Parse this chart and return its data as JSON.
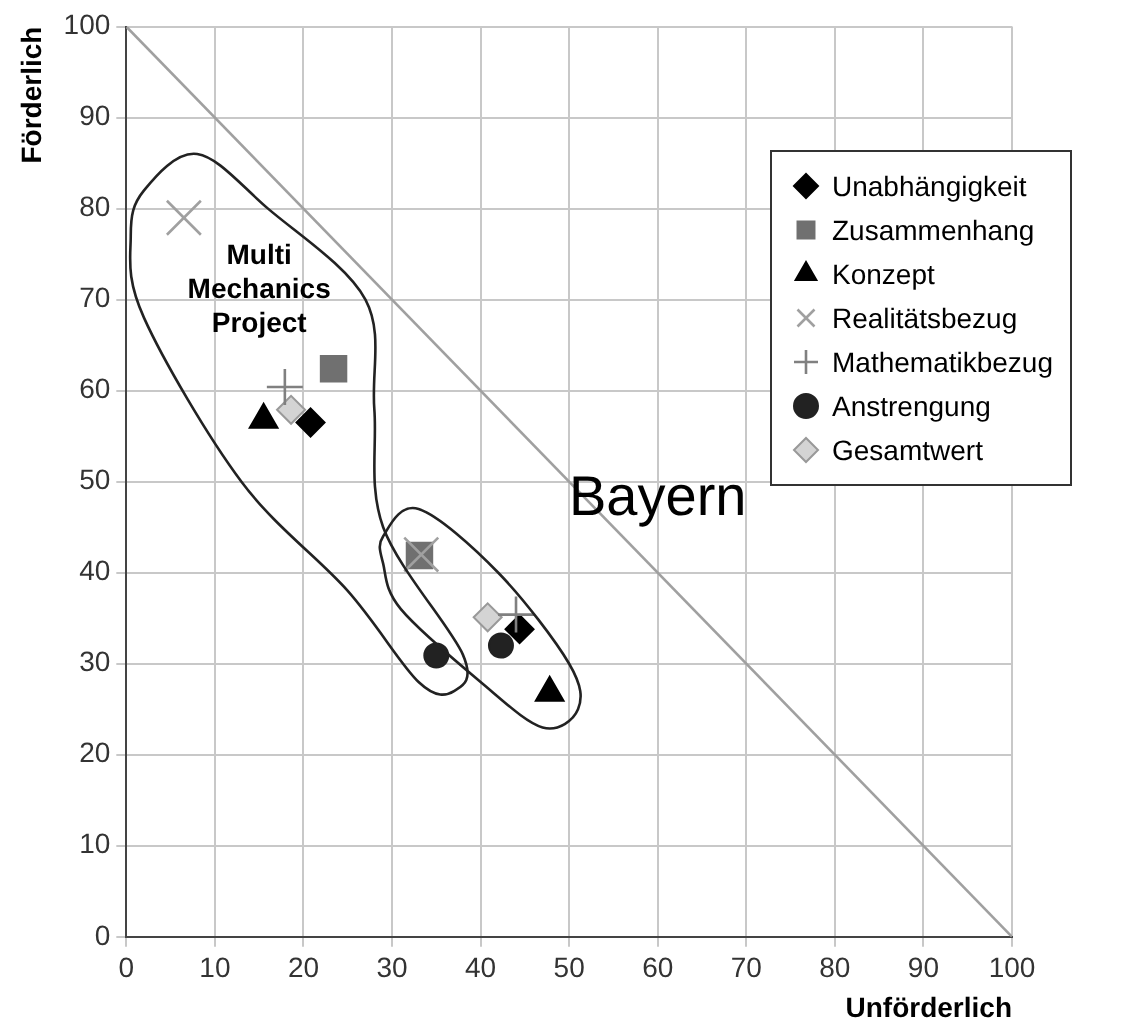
{
  "chart_data": {
    "type": "scatter",
    "xlabel": "Unförderlich",
    "ylabel": "Förderlich",
    "xlim": [
      0,
      100
    ],
    "ylim": [
      0,
      100
    ],
    "xticks": [
      0,
      10,
      20,
      30,
      40,
      50,
      60,
      70,
      80,
      90,
      100
    ],
    "yticks": [
      0,
      10,
      20,
      30,
      40,
      50,
      60,
      70,
      80,
      90,
      100
    ],
    "grid": true,
    "legend": "top right",
    "series": [
      {
        "name": "Unabhängigkeit",
        "color": "#000000",
        "marker": "diamond",
        "x": [
          20.8,
          44.4
        ],
        "values": [
          56.5,
          33.8
        ]
      },
      {
        "name": "Zusammenhang",
        "color": "#707070",
        "marker": "square",
        "x": [
          23.4,
          33.1
        ],
        "values": [
          62.4,
          41.9
        ]
      },
      {
        "name": "Konzept",
        "color": "#000000",
        "marker": "triangle",
        "x": [
          15.5,
          47.8
        ],
        "values": [
          56.8,
          26.8
        ]
      },
      {
        "name": "Realitätsbezug",
        "color": "#a0a0a0",
        "marker": "cross",
        "x": [
          6.5,
          33.3
        ],
        "values": [
          79,
          42
        ]
      },
      {
        "name": "Mathematikbezug",
        "color": "#808080",
        "marker": "plus",
        "x": [
          17.9,
          44
        ],
        "values": [
          60.4,
          35.4
        ]
      },
      {
        "name": "Anstrengung",
        "color": "#222222",
        "marker": "circle",
        "x": [
          35,
          42.3
        ],
        "values": [
          30.9,
          32
        ]
      },
      {
        "name": "Gesamtwert",
        "color": "#d4d4d4",
        "marker": "diamond",
        "x": [
          18.6,
          40.8
        ],
        "values": [
          57.9,
          35.1
        ]
      },
      {
        "type": "line",
        "color": "#a0a0a0",
        "marker": "none",
        "x": [
          0,
          100
        ],
        "values": [
          100,
          0
        ]
      }
    ],
    "annotations": [
      "Multi Mechanics Project",
      "Bayern"
    ]
  }
}
